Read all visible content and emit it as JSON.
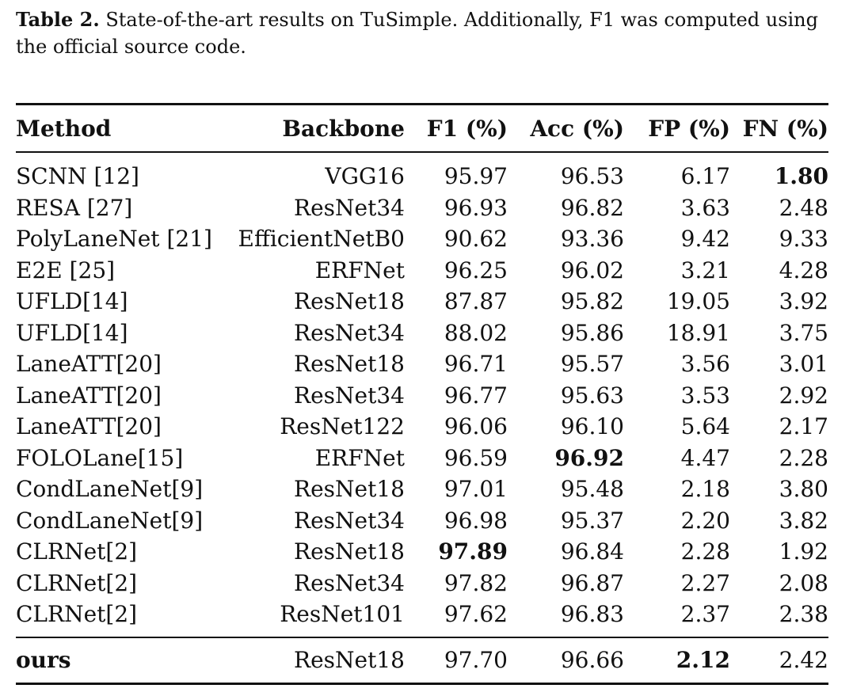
{
  "caption": {
    "label": "Table 2.",
    "text": " State-of-the-art results on TuSimple. Additionally, F1 was computed using the official source code."
  },
  "table": {
    "headers": [
      "Method",
      "Backbone",
      "F1 (%)",
      "Acc (%)",
      "FP (%)",
      "FN (%)"
    ],
    "rows": [
      [
        "SCNN [12]",
        "VGG16",
        "95.97",
        "96.53",
        "6.17",
        "1.80"
      ],
      [
        "RESA [27]",
        "ResNet34",
        "96.93",
        "96.82",
        "3.63",
        "2.48"
      ],
      [
        "PolyLaneNet [21]",
        "EfficientNetB0",
        "90.62",
        "93.36",
        "9.42",
        "9.33"
      ],
      [
        "E2E [25]",
        "ERFNet",
        "96.25",
        "96.02",
        "3.21",
        "4.28"
      ],
      [
        "UFLD[14]",
        "ResNet18",
        "87.87",
        "95.82",
        "19.05",
        "3.92"
      ],
      [
        "UFLD[14]",
        "ResNet34",
        "88.02",
        "95.86",
        "18.91",
        "3.75"
      ],
      [
        "LaneATT[20]",
        "ResNet18",
        "96.71",
        "95.57",
        "3.56",
        "3.01"
      ],
      [
        "LaneATT[20]",
        "ResNet34",
        "96.77",
        "95.63",
        "3.53",
        "2.92"
      ],
      [
        "LaneATT[20]",
        "ResNet122",
        "96.06",
        "96.10",
        "5.64",
        "2.17"
      ],
      [
        "FOLOLane[15]",
        "ERFNet",
        "96.59",
        "96.92",
        "4.47",
        "2.28"
      ],
      [
        "CondLaneNet[9]",
        "ResNet18",
        "97.01",
        "95.48",
        "2.18",
        "3.80"
      ],
      [
        "CondLaneNet[9]",
        "ResNet34",
        "96.98",
        "95.37",
        "2.20",
        "3.82"
      ],
      [
        "CLRNet[2]",
        "ResNet18",
        "97.89",
        "96.84",
        "2.28",
        "1.92"
      ],
      [
        "CLRNet[2]",
        "ResNet34",
        "97.82",
        "96.87",
        "2.27",
        "2.08"
      ],
      [
        "CLRNet[2]",
        "ResNet101",
        "97.62",
        "96.83",
        "2.37",
        "2.38"
      ]
    ],
    "footer_row": [
      "ours",
      "ResNet18",
      "97.70",
      "96.66",
      "2.12",
      "2.42"
    ]
  }
}
